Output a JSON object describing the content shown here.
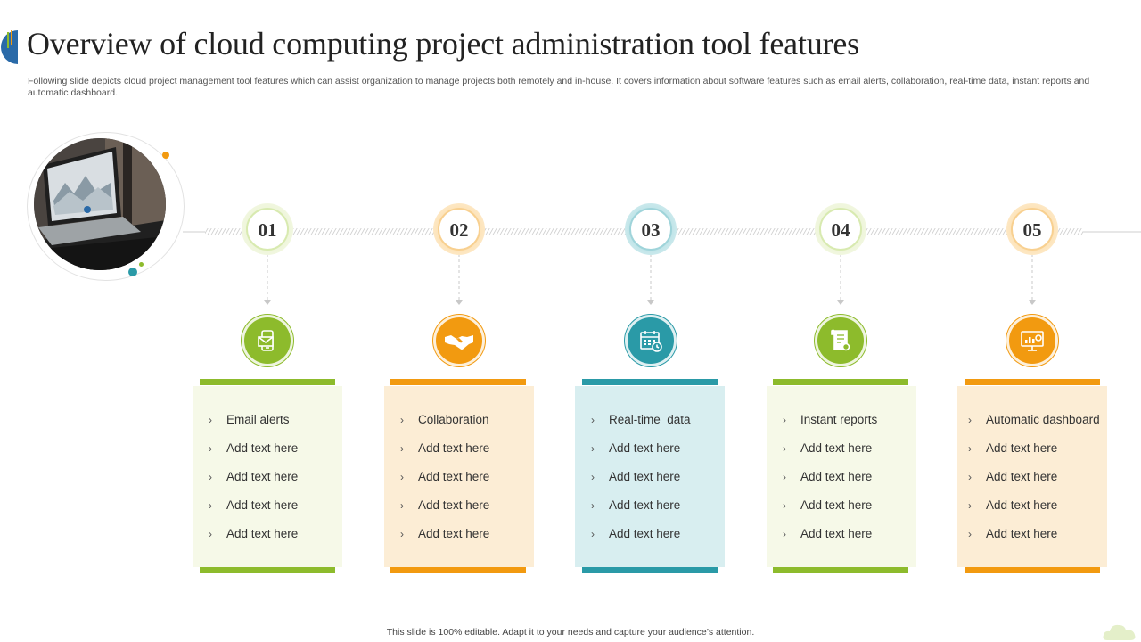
{
  "title": "Overview of cloud computing project administration tool features",
  "subtitle": "Following slide depicts cloud project management tool features which can assist organization to manage projects both remotely and in-house. It covers information about software features such as email alerts, collaboration, real-time data, instant reports and automatic dashboard.",
  "footer": "This slide is 100% editable. Adapt it to your needs and capture your audience’s attention.",
  "colors": {
    "green": "#8dbb2c",
    "orange": "#f29a10",
    "teal": "#2a9aa7",
    "green_bg": "#f6f9e8",
    "orange_bg": "#fcedd5",
    "teal_bg": "#d8eef0"
  },
  "features": [
    {
      "number": "01",
      "icon": "mobile-email-icon",
      "color": "green",
      "items": [
        "Email alerts",
        "Add text here",
        "Add text here",
        "Add text here",
        "Add text here"
      ]
    },
    {
      "number": "02",
      "icon": "handshake-icon",
      "color": "orange",
      "items": [
        "Collaboration",
        "Add text here",
        "Add text here",
        "Add text here",
        "Add text here"
      ]
    },
    {
      "number": "03",
      "icon": "calendar-clock-icon",
      "color": "teal",
      "items": [
        "Real-time  data",
        "Add text here",
        "Add text here",
        "Add text here",
        "Add text here"
      ]
    },
    {
      "number": "04",
      "icon": "report-document-icon",
      "color": "green",
      "items": [
        "Instant reports",
        "Add text here",
        "Add text here",
        "Add text here",
        "Add text here"
      ]
    },
    {
      "number": "05",
      "icon": "dashboard-monitor-icon",
      "color": "orange",
      "items": [
        "Automatic dashboard",
        "Add text here",
        "Add text here",
        "Add text here",
        "Add text here"
      ]
    }
  ]
}
